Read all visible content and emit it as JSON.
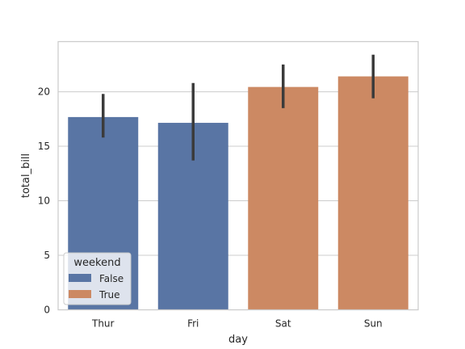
{
  "chart_data": {
    "type": "bar",
    "xlabel": "day",
    "ylabel": "total_bill",
    "categories": [
      "Thur",
      "Fri",
      "Sat",
      "Sun"
    ],
    "values": [
      17.68,
      17.15,
      20.44,
      21.41
    ],
    "ci": [
      [
        15.8,
        19.8
      ],
      [
        13.7,
        20.8
      ],
      [
        18.5,
        22.5
      ],
      [
        19.4,
        23.4
      ]
    ],
    "hue": [
      "False",
      "False",
      "True",
      "True"
    ],
    "ylim": [
      0,
      24.6
    ],
    "yticks": [
      0,
      5,
      10,
      15,
      20
    ],
    "grid": true,
    "legend": {
      "title": "weekend",
      "entries": [
        {
          "label": "False",
          "color": "#5975a4"
        },
        {
          "label": "True",
          "color": "#cc8963"
        }
      ],
      "placement": "lower-left"
    },
    "colors": {
      "False": "#5975a4",
      "True": "#cc8963",
      "errorbar": "#3b3b3b",
      "grid": "#cccccc",
      "spine": "#cccccc"
    }
  }
}
